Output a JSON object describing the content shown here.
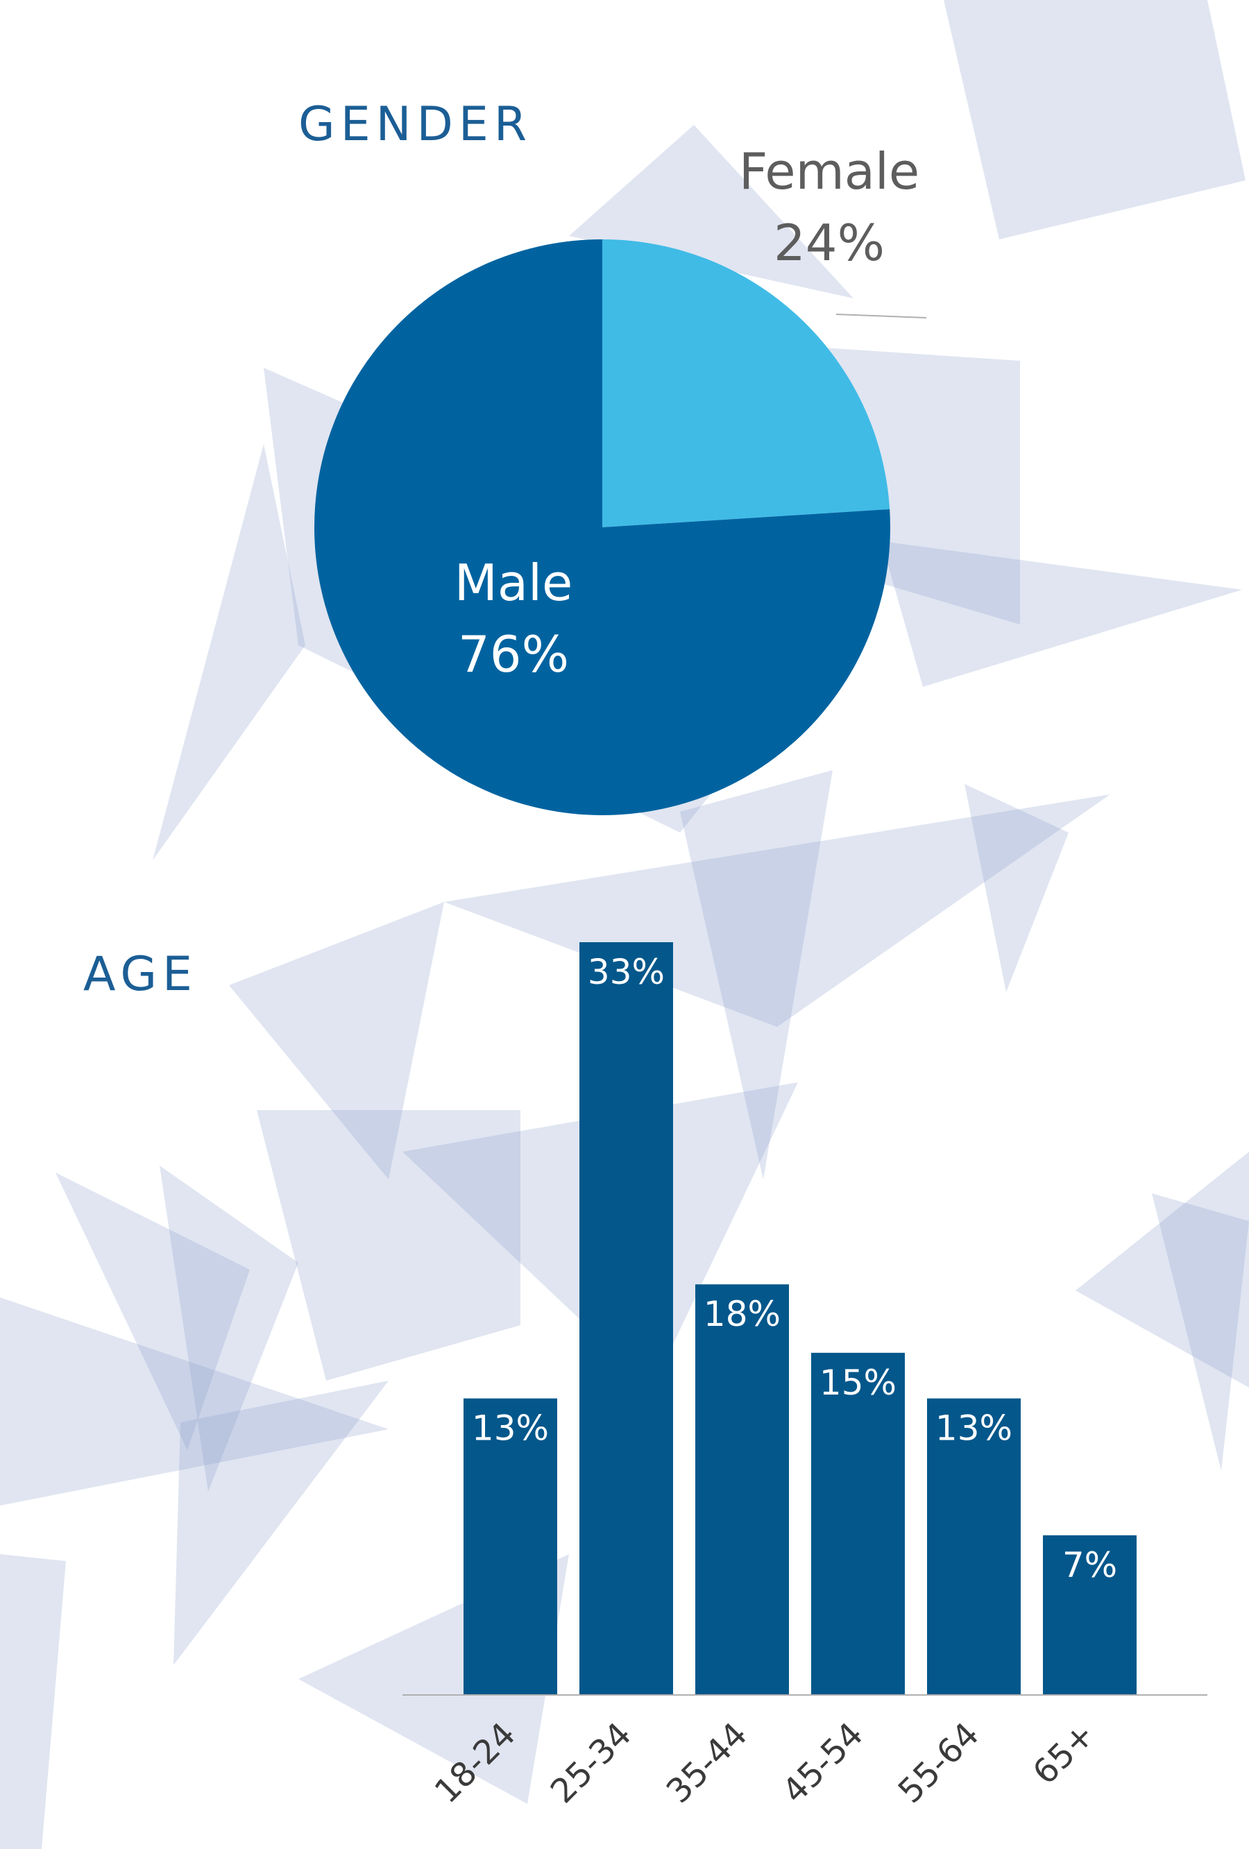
{
  "colors": {
    "title": "#1b5e95",
    "male": "#0063a0",
    "female": "#40bbe6",
    "bar": "#04578b",
    "bar_label": "#ffffff",
    "female_label": "#5d5d5d",
    "tick_label": "#3a3a3a",
    "axis": "#b0b0b0",
    "background_shape": "#8fa2cc"
  },
  "gender": {
    "title": "GENDER"
  },
  "age": {
    "title": "AGE"
  },
  "chart_data": [
    {
      "type": "pie",
      "title": "GENDER",
      "slices": [
        {
          "label": "Female",
          "value": 24,
          "value_label": "24%"
        },
        {
          "label": "Male",
          "value": 76,
          "value_label": "76%"
        }
      ],
      "legend": "none"
    },
    {
      "type": "bar",
      "title": "AGE",
      "categories": [
        "18-24",
        "25-34",
        "35-44",
        "45-54",
        "55-64",
        "65+"
      ],
      "values": [
        13,
        33,
        18,
        15,
        13,
        7
      ],
      "data_labels": [
        "13%",
        "33%",
        "18%",
        "15%",
        "13%",
        "7%"
      ],
      "xlabel": "",
      "ylabel": "",
      "ylim": [
        0,
        33
      ],
      "grid": false,
      "legend": "none"
    }
  ]
}
